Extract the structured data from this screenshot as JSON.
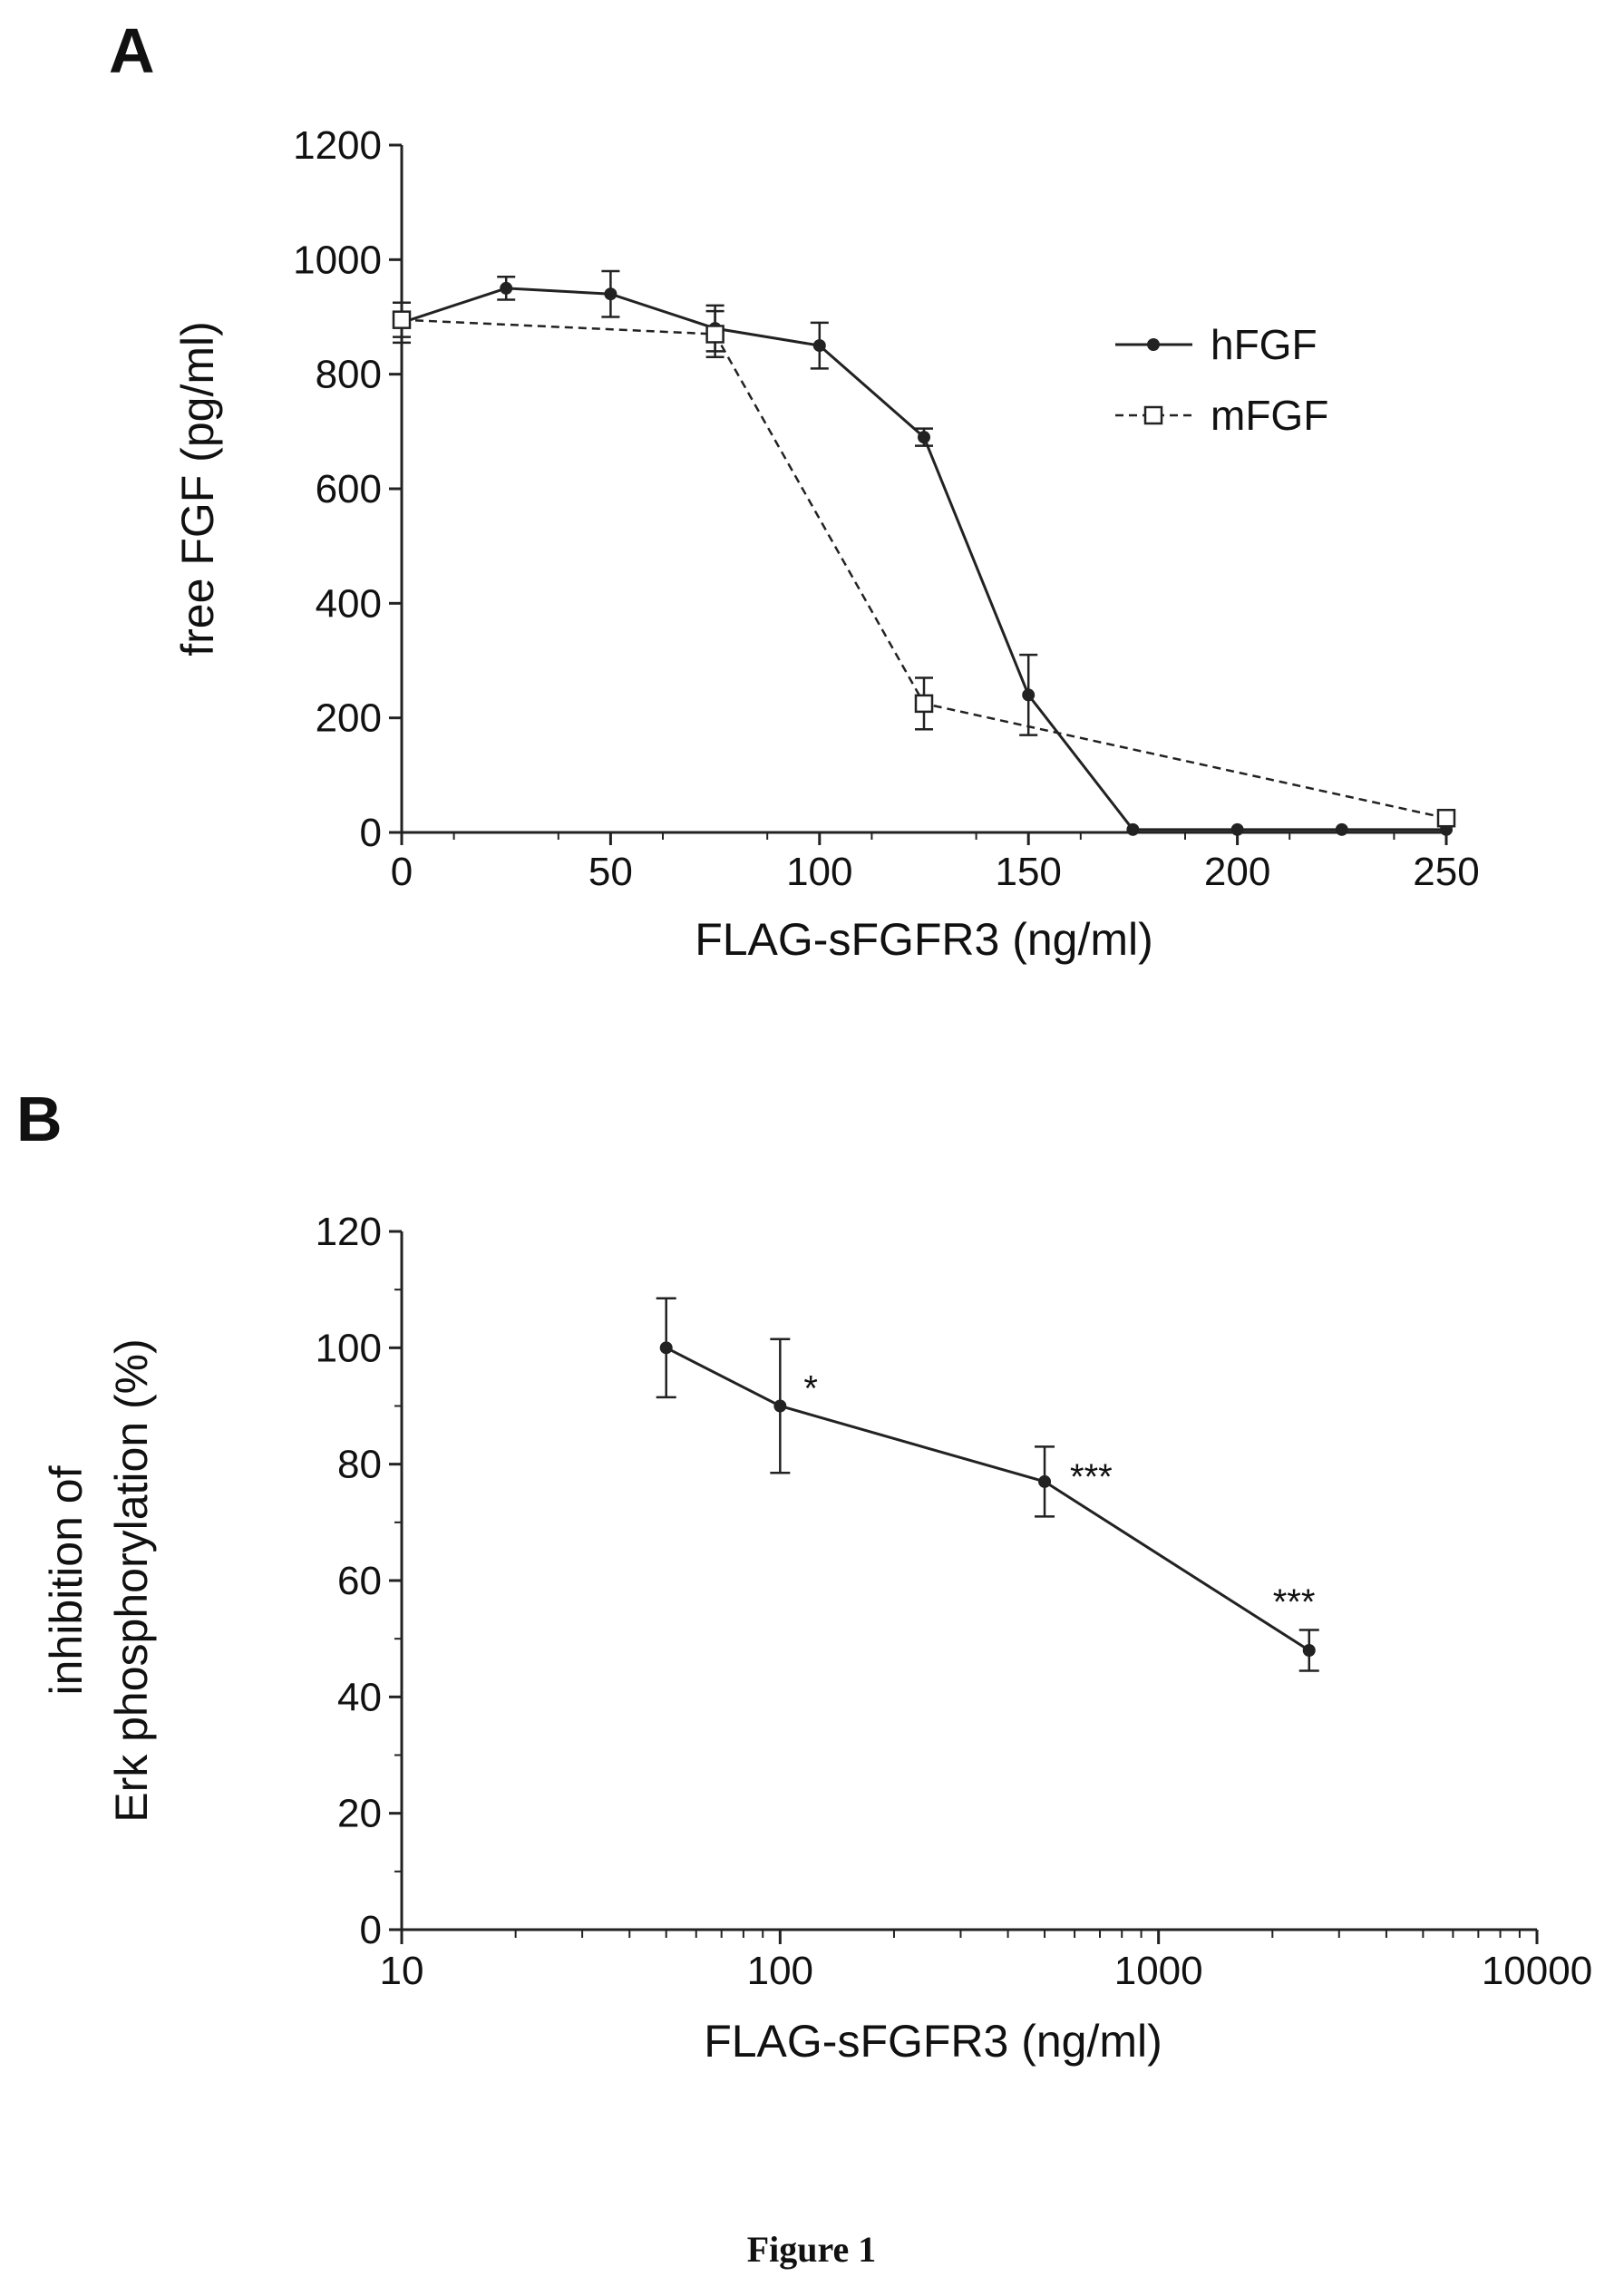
{
  "chart_data": [
    {
      "panel": "A",
      "type": "line",
      "xlabel": "FLAG-sFGFR3 (ng/ml)",
      "ylabel": "free FGF (pg/ml)",
      "xlim": [
        0,
        250
      ],
      "ylim": [
        0,
        1200
      ],
      "xticks": [
        0,
        50,
        100,
        150,
        200,
        250
      ],
      "yticks": [
        0,
        200,
        400,
        600,
        800,
        1000,
        1200
      ],
      "legend_position": "right",
      "series": [
        {
          "name": "hFGF",
          "style": "solid",
          "marker": "filled-circle",
          "x": [
            0,
            25,
            50,
            75,
            100,
            125,
            150,
            175,
            200,
            225,
            250
          ],
          "y": [
            890,
            950,
            940,
            880,
            850,
            690,
            240,
            5,
            5,
            5,
            5
          ],
          "err": [
            35,
            20,
            40,
            40,
            40,
            15,
            70,
            0,
            0,
            0,
            0
          ]
        },
        {
          "name": "mFGF",
          "style": "dashed",
          "marker": "open-square",
          "x": [
            0,
            75,
            125,
            250
          ],
          "y": [
            895,
            870,
            225,
            25
          ],
          "err": [
            30,
            40,
            45,
            10
          ]
        }
      ]
    },
    {
      "panel": "B",
      "type": "line",
      "xlabel": "FLAG-sFGFR3 (ng/ml)",
      "ylabel_line1": "inhibition of",
      "ylabel_line2": "Erk phosphorylation (%)",
      "xscale": "log",
      "xlim": [
        10,
        10000
      ],
      "ylim": [
        0,
        120
      ],
      "xticks": [
        10,
        100,
        1000,
        10000
      ],
      "yticks": [
        0,
        20,
        40,
        60,
        80,
        100,
        120
      ],
      "series": [
        {
          "marker": "filled-circle",
          "x": [
            50,
            100,
            500,
            2500
          ],
          "y": [
            100,
            90,
            77,
            48
          ],
          "err": [
            8.5,
            11.5,
            6,
            3.5
          ],
          "annotations": [
            "",
            "*",
            "***",
            "***"
          ]
        }
      ]
    }
  ],
  "figure_caption": "Figure 1"
}
